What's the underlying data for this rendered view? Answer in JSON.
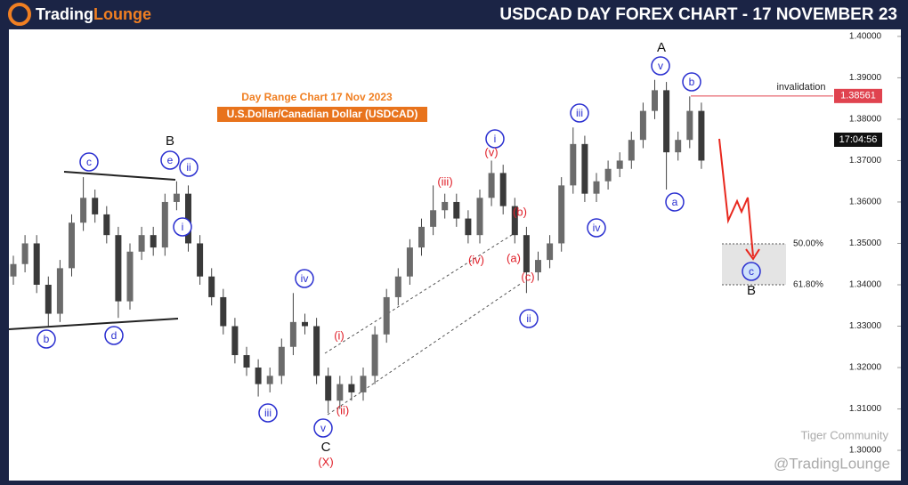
{
  "header": {
    "logo_part1": "Trading",
    "logo_part2": "Lounge"
  },
  "chart_data": {
    "type": "candlestick",
    "title": "USDCAD DAY FOREX CHART - 17 NOVEMBER 23",
    "subtitle": "Day Range Chart 17 Nov  2023",
    "instrument": "U.S.Dollar/Canadian Dollar (USDCAD)",
    "up_color": "#6b6b6b",
    "down_color": "#3a3a3a",
    "open": [
      1.342,
      1.345,
      1.35,
      1.34,
      1.333,
      1.344,
      1.355,
      1.361,
      1.357,
      1.352,
      1.336,
      1.348,
      1.352,
      1.349,
      1.36,
      1.362,
      1.35,
      1.342,
      1.337,
      1.33,
      1.323,
      1.32,
      1.316,
      1.318,
      1.325,
      1.331,
      1.33,
      1.318,
      1.312,
      1.316,
      1.314,
      1.318,
      1.328,
      1.337,
      1.342,
      1.349,
      1.354,
      1.358,
      1.36,
      1.356,
      1.352,
      1.361,
      1.367,
      1.359,
      1.352,
      1.343,
      1.346,
      1.35,
      1.364,
      1.374,
      1.362,
      1.365,
      1.368,
      1.37,
      1.375,
      1.382,
      1.387,
      1.372,
      1.375,
      1.382
    ],
    "high": [
      1.347,
      1.352,
      1.352,
      1.342,
      1.346,
      1.357,
      1.366,
      1.363,
      1.359,
      1.354,
      1.35,
      1.354,
      1.354,
      1.362,
      1.365,
      1.364,
      1.352,
      1.344,
      1.339,
      1.332,
      1.325,
      1.322,
      1.32,
      1.327,
      1.338,
      1.333,
      1.332,
      1.32,
      1.318,
      1.318,
      1.32,
      1.33,
      1.339,
      1.344,
      1.351,
      1.356,
      1.364,
      1.362,
      1.362,
      1.358,
      1.363,
      1.37,
      1.369,
      1.361,
      1.354,
      1.348,
      1.352,
      1.366,
      1.378,
      1.376,
      1.367,
      1.37,
      1.372,
      1.377,
      1.384,
      1.3895,
      1.389,
      1.377,
      1.3855,
      1.384
    ],
    "low": [
      1.34,
      1.343,
      1.338,
      1.33,
      1.331,
      1.342,
      1.353,
      1.355,
      1.35,
      1.332,
      1.334,
      1.346,
      1.347,
      1.347,
      1.358,
      1.348,
      1.34,
      1.335,
      1.328,
      1.321,
      1.318,
      1.313,
      1.314,
      1.316,
      1.323,
      1.328,
      1.316,
      1.309,
      1.31,
      1.312,
      1.312,
      1.316,
      1.326,
      1.335,
      1.34,
      1.347,
      1.352,
      1.356,
      1.354,
      1.35,
      1.35,
      1.359,
      1.357,
      1.35,
      1.338,
      1.341,
      1.344,
      1.348,
      1.362,
      1.36,
      1.36,
      1.363,
      1.366,
      1.368,
      1.373,
      1.38,
      1.363,
      1.37,
      1.373,
      1.368
    ],
    "close": [
      1.345,
      1.35,
      1.34,
      1.333,
      1.344,
      1.355,
      1.361,
      1.357,
      1.352,
      1.336,
      1.348,
      1.352,
      1.349,
      1.36,
      1.362,
      1.35,
      1.342,
      1.337,
      1.33,
      1.323,
      1.32,
      1.316,
      1.318,
      1.325,
      1.331,
      1.33,
      1.318,
      1.312,
      1.316,
      1.314,
      1.318,
      1.328,
      1.337,
      1.342,
      1.349,
      1.354,
      1.358,
      1.36,
      1.356,
      1.352,
      1.361,
      1.367,
      1.359,
      1.352,
      1.343,
      1.346,
      1.35,
      1.364,
      1.374,
      1.362,
      1.365,
      1.368,
      1.37,
      1.375,
      1.382,
      1.387,
      1.372,
      1.375,
      1.382,
      1.37
    ],
    "ylim": [
      1.2927,
      1.4017
    ],
    "yticks": [
      {
        "value": 1.4,
        "label": "1.40000"
      },
      {
        "value": 1.39,
        "label": "1.39000"
      },
      {
        "value": 1.38,
        "label": "1.38000"
      },
      {
        "value": 1.37,
        "label": "1.37000"
      },
      {
        "value": 1.36,
        "label": "1.36000"
      },
      {
        "value": 1.35,
        "label": "1.35000"
      },
      {
        "value": 1.34,
        "label": "1.34000"
      },
      {
        "value": 1.33,
        "label": "1.33000"
      },
      {
        "value": 1.32,
        "label": "1.32000"
      },
      {
        "value": 1.31,
        "label": "1.31000"
      },
      {
        "value": 1.3,
        "label": "1.30000"
      }
    ],
    "invalidation_label": "invalidation",
    "invalidation_level": 1.38561,
    "last_time": "17:04:56",
    "fib_labels": [
      "50.00%",
      "61.80%"
    ],
    "annotations": [
      "c",
      "e",
      "ii",
      "i",
      "b",
      "d",
      "iv",
      "iii",
      "v",
      "i",
      "iii",
      "iv",
      "v",
      "b",
      "a",
      "ii",
      "c",
      "B",
      "C",
      "A",
      "B",
      "(X)",
      "(i)",
      "(ii)",
      "(iii)",
      "(iv)",
      "(v)",
      "(b)",
      "(a)",
      "(c)"
    ],
    "watermark": [
      "Tiger Community",
      "@TradingLounge"
    ]
  }
}
